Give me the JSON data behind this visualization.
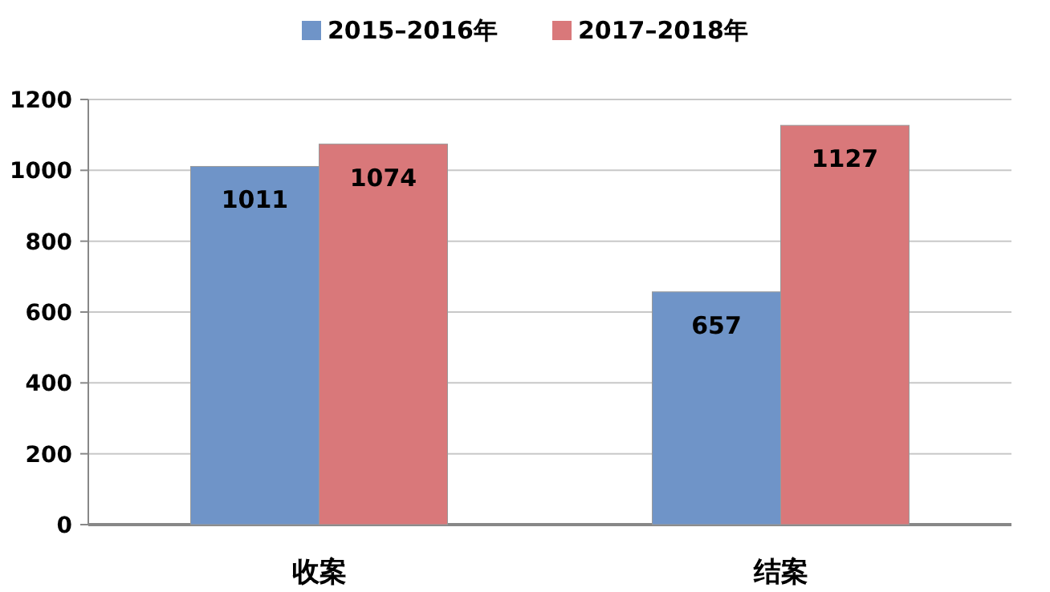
{
  "chart_data": {
    "type": "bar",
    "categories": [
      "收案",
      "结案"
    ],
    "series": [
      {
        "name": "2015–2016年",
        "color": "#6f94c8",
        "values": [
          1011,
          657
        ]
      },
      {
        "name": "2017–2018年",
        "color": "#d9787a",
        "values": [
          1074,
          1127
        ]
      }
    ],
    "ylim": [
      0,
      1200
    ],
    "yticks": [
      0,
      200,
      400,
      600,
      800,
      1000,
      1200
    ],
    "grid": "y",
    "legend": "top",
    "data_labels": true
  }
}
